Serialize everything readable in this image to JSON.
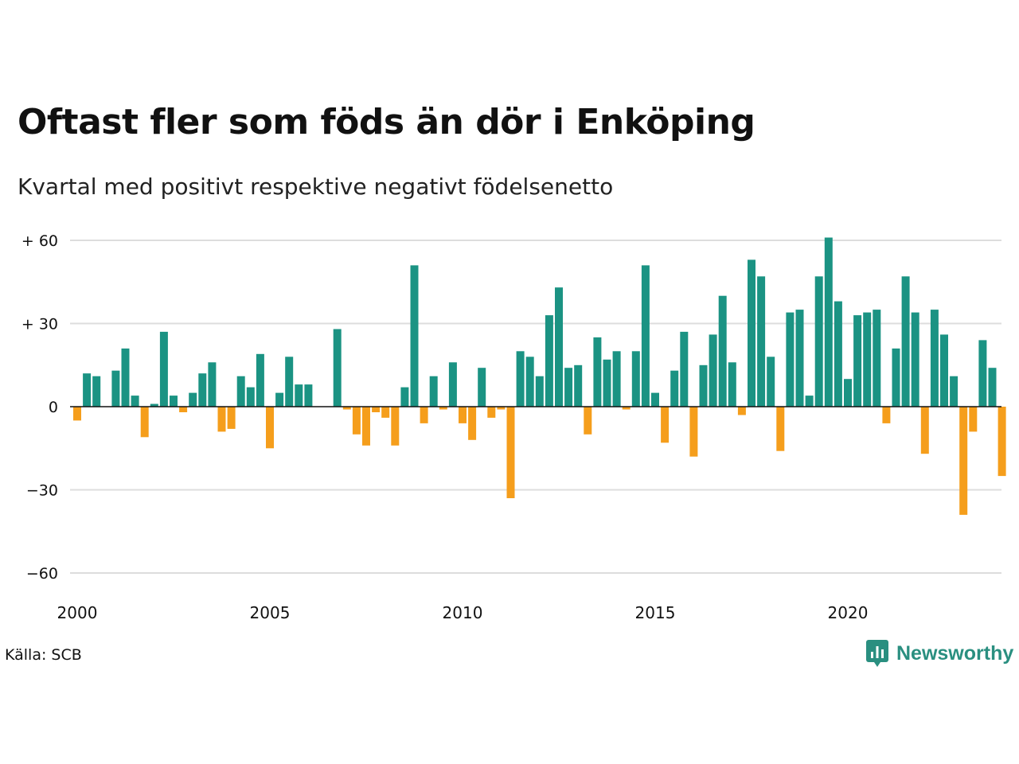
{
  "title": "Oftast fler som föds än dör i Enköping",
  "subtitle": "Kvartal med positivt respektive negativt födelsenetto",
  "source": "Källa: SCB",
  "brand": "Newsworthy",
  "colors": {
    "positive": "#1b9383",
    "negative": "#f59e1c",
    "grid": "#dddddd",
    "brand": "#2a8f80"
  },
  "chart_data": {
    "type": "bar",
    "x_start": 2000,
    "points_per_year": 4,
    "x_ticks": [
      2000,
      2005,
      2010,
      2015,
      2020
    ],
    "y_ticks": [
      60,
      30,
      0,
      -30,
      -60
    ],
    "y_tick_labels": [
      "+ 60",
      "+ 30",
      "0",
      "−30",
      "−60"
    ],
    "ylim": [
      -60,
      60
    ],
    "grid": true,
    "values": [
      -5,
      12,
      11,
      0,
      13,
      21,
      4,
      -11,
      1,
      27,
      4,
      -2,
      5,
      12,
      16,
      -9,
      -8,
      11,
      7,
      19,
      -15,
      5,
      18,
      8,
      8,
      0,
      0,
      28,
      -1,
      -10,
      -14,
      -2,
      -4,
      -14,
      7,
      51,
      -6,
      11,
      -1,
      16,
      -6,
      -12,
      14,
      -4,
      -1,
      -33,
      20,
      18,
      11,
      33,
      43,
      14,
      15,
      -10,
      25,
      17,
      20,
      -1,
      20,
      51,
      5,
      -13,
      13,
      27,
      -18,
      15,
      26,
      40,
      16,
      -3,
      53,
      47,
      18,
      -16,
      34,
      35,
      4,
      47,
      61,
      38,
      10,
      33,
      34,
      35,
      -6,
      21,
      47,
      34,
      -17,
      35,
      26,
      11,
      -39,
      -9,
      24,
      14,
      -25
    ]
  }
}
